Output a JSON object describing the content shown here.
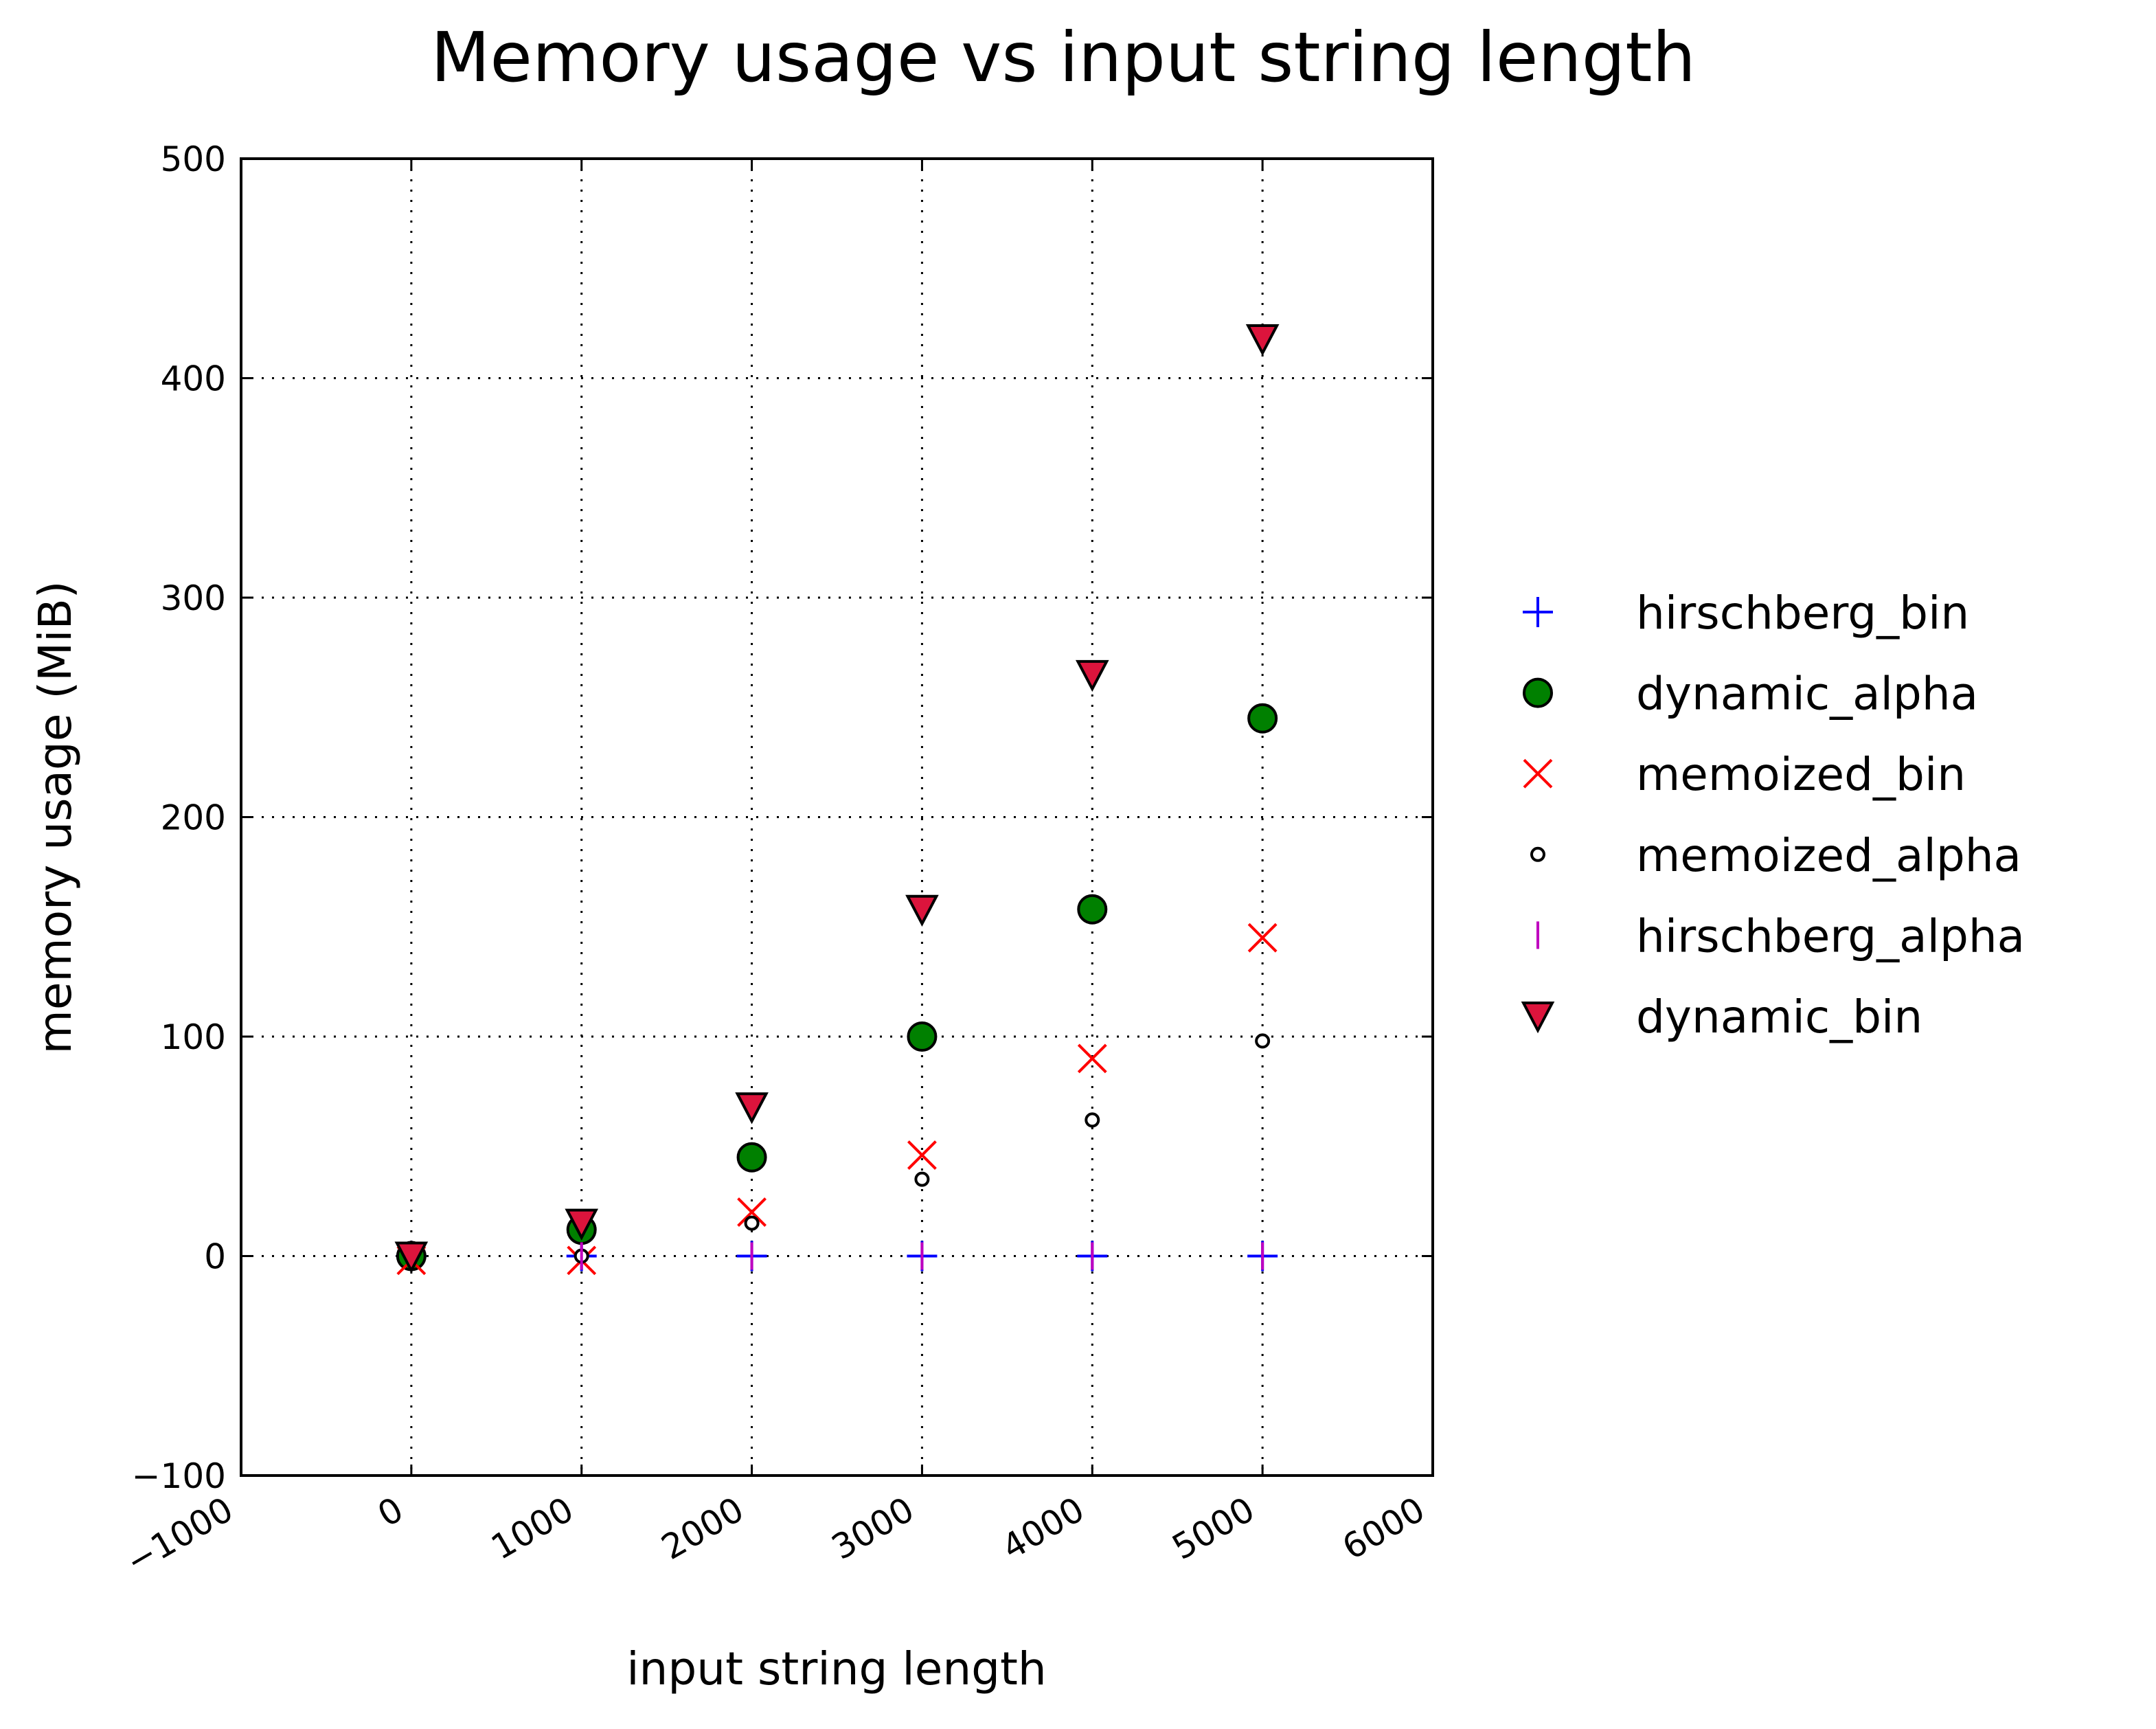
{
  "chart_data": {
    "type": "scatter",
    "title": "Memory usage vs input string length",
    "xlabel": "input string length",
    "ylabel": "memory usage (MiB)",
    "xlim": [
      -1000,
      6000
    ],
    "ylim": [
      -100,
      500
    ],
    "xticks": [
      -1000,
      0,
      1000,
      2000,
      3000,
      4000,
      5000,
      6000
    ],
    "xtick_labels": [
      "−1000",
      "0",
      "1000",
      "2000",
      "3000",
      "4000",
      "5000",
      "6000"
    ],
    "yticks": [
      -100,
      0,
      100,
      200,
      300,
      400,
      500
    ],
    "ytick_labels": [
      "−100",
      "0",
      "100",
      "200",
      "300",
      "400",
      "500"
    ],
    "grid": true,
    "legend_position": "right-outside",
    "series": [
      {
        "name": "hirschberg_bin",
        "marker": "plus",
        "color": "#0000ff",
        "x": [
          0,
          1000,
          2000,
          3000,
          4000,
          5000
        ],
        "y": [
          0,
          0,
          0,
          0,
          0,
          0
        ]
      },
      {
        "name": "dynamic_alpha",
        "marker": "circle",
        "color": "#008000",
        "x": [
          0,
          1000,
          2000,
          3000,
          4000,
          5000
        ],
        "y": [
          0,
          12,
          45,
          100,
          158,
          245
        ]
      },
      {
        "name": "memoized_bin",
        "marker": "x",
        "color": "#ff0000",
        "x": [
          0,
          1000,
          2000,
          3000,
          4000,
          5000
        ],
        "y": [
          -2,
          -2,
          20,
          46,
          90,
          145
        ]
      },
      {
        "name": "memoized_alpha",
        "marker": "small-circle",
        "color": "#ffffff",
        "x": [
          0,
          1000,
          2000,
          3000,
          4000,
          5000
        ],
        "y": [
          0,
          0,
          15,
          35,
          62,
          98
        ]
      },
      {
        "name": "hirschberg_alpha",
        "marker": "vline",
        "color": "#bf00bf",
        "x": [
          0,
          1000,
          2000,
          3000,
          4000,
          5000
        ],
        "y": [
          0,
          0,
          0,
          0,
          0,
          0
        ]
      },
      {
        "name": "dynamic_bin",
        "marker": "triangle-down",
        "color": "#dc143c",
        "x": [
          0,
          1000,
          2000,
          3000,
          4000,
          5000
        ],
        "y": [
          0,
          15,
          68,
          158,
          265,
          418
        ]
      }
    ]
  }
}
